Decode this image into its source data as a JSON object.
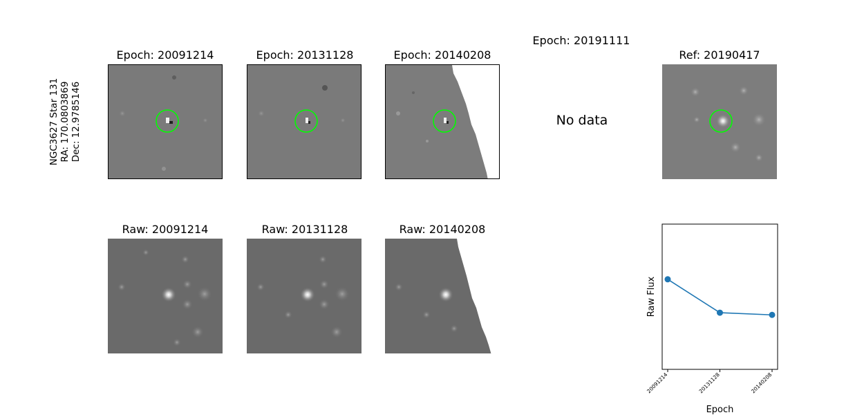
{
  "figure": {
    "ylabel_lines": [
      "NGC3627 Star 131",
      "RA: 170.0803869",
      "Dec: 12.9785146"
    ]
  },
  "diff_titles": [
    "Epoch: 20091214",
    "Epoch: 20131128",
    "Epoch: 20140208"
  ],
  "missing_epoch_title": "Epoch: 20191111",
  "no_data_text": "No data",
  "ref_title": "Ref: 20190417",
  "raw_titles": [
    "Raw: 20091214",
    "Raw: 20131128",
    "Raw: 20140208"
  ],
  "colors": {
    "circle": "#00ff00",
    "series": "#1f77b4"
  },
  "chart_data": {
    "type": "line",
    "xlabel": "Epoch",
    "ylabel": "Raw Flux",
    "categories": [
      "20091214",
      "20131128",
      "20140208"
    ],
    "series": [
      {
        "values": [
          0.62,
          0.39,
          0.375
        ]
      }
    ],
    "ylim": [
      0,
      1
    ],
    "grid": false,
    "yticks": "hidden",
    "marker": "circle"
  }
}
